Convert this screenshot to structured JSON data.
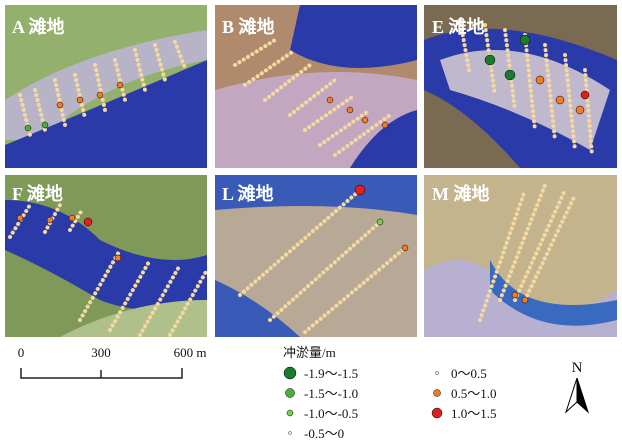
{
  "panels": [
    {
      "label": "A 滩地"
    },
    {
      "label": "B 滩地"
    },
    {
      "label": "E 滩地"
    },
    {
      "label": "F 滩地"
    },
    {
      "label": "L 滩地"
    },
    {
      "label": "M 滩地"
    }
  ],
  "scale_bar": {
    "labels": [
      "0",
      "300",
      "600 m"
    ]
  },
  "legend": {
    "title": "冲淤量/m",
    "items": [
      "-1.9～-1.5",
      "-1.5～-1.0",
      "-1.0～-0.5",
      "-0.5～0",
      "0～0.5",
      "0.5～1.0",
      "1.0～1.5"
    ]
  },
  "north": "N"
}
